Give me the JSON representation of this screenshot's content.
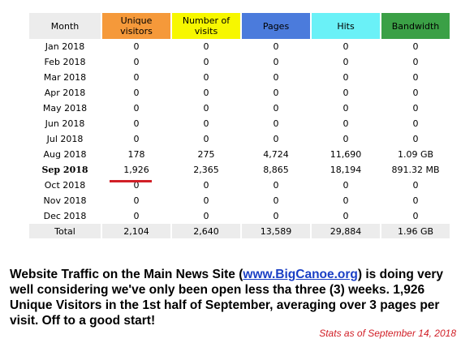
{
  "table": {
    "headers": {
      "month": "Month",
      "unique_visitors": "Unique visitors",
      "visits": "Number of visits",
      "pages": "Pages",
      "hits": "Hits",
      "bandwidth": "Bandwidth"
    },
    "rows": [
      {
        "month": "Jan 2018",
        "unique_visitors": "0",
        "visits": "0",
        "pages": "0",
        "hits": "0",
        "bandwidth": "0"
      },
      {
        "month": "Feb 2018",
        "unique_visitors": "0",
        "visits": "0",
        "pages": "0",
        "hits": "0",
        "bandwidth": "0"
      },
      {
        "month": "Mar 2018",
        "unique_visitors": "0",
        "visits": "0",
        "pages": "0",
        "hits": "0",
        "bandwidth": "0"
      },
      {
        "month": "Apr 2018",
        "unique_visitors": "0",
        "visits": "0",
        "pages": "0",
        "hits": "0",
        "bandwidth": "0"
      },
      {
        "month": "May 2018",
        "unique_visitors": "0",
        "visits": "0",
        "pages": "0",
        "hits": "0",
        "bandwidth": "0"
      },
      {
        "month": "Jun 2018",
        "unique_visitors": "0",
        "visits": "0",
        "pages": "0",
        "hits": "0",
        "bandwidth": "0"
      },
      {
        "month": "Jul 2018",
        "unique_visitors": "0",
        "visits": "0",
        "pages": "0",
        "hits": "0",
        "bandwidth": "0"
      },
      {
        "month": "Aug 2018",
        "unique_visitors": "178",
        "visits": "275",
        "pages": "4,724",
        "hits": "11,690",
        "bandwidth": "1.09 GB"
      },
      {
        "month": "Sep 2018",
        "unique_visitors": "1,926",
        "visits": "2,365",
        "pages": "8,865",
        "hits": "18,194",
        "bandwidth": "891.32 MB",
        "highlight": true
      },
      {
        "month": "Oct 2018",
        "unique_visitors": "0",
        "visits": "0",
        "pages": "0",
        "hits": "0",
        "bandwidth": "0"
      },
      {
        "month": "Nov 2018",
        "unique_visitors": "0",
        "visits": "0",
        "pages": "0",
        "hits": "0",
        "bandwidth": "0"
      },
      {
        "month": "Dec 2018",
        "unique_visitors": "0",
        "visits": "0",
        "pages": "0",
        "hits": "0",
        "bandwidth": "0"
      }
    ],
    "total": {
      "month": "Total",
      "unique_visitors": "2,104",
      "visits": "2,640",
      "pages": "13,589",
      "hits": "29,884",
      "bandwidth": "1.96 GB"
    }
  },
  "summary": {
    "before_link": "Website Traffic on the Main News Site (",
    "link_text": "www.BigCanoe.org",
    "after_link": ") is doing very well considering we've only been open less tha three (3) weeks. 1,926 Unique Visitors in the 1st half of September, averaging over 3 pages per visit. Off to a good start!"
  },
  "stats_date": "Stats as of September 14, 2018",
  "colors": {
    "unique_visitors": "#f5993a",
    "visits": "#f7f700",
    "pages": "#4b7bdc",
    "hits": "#6af1f7",
    "bandwidth": "#3ba046",
    "accent_red": "#d11f27",
    "link_blue": "#1a3fc5"
  }
}
